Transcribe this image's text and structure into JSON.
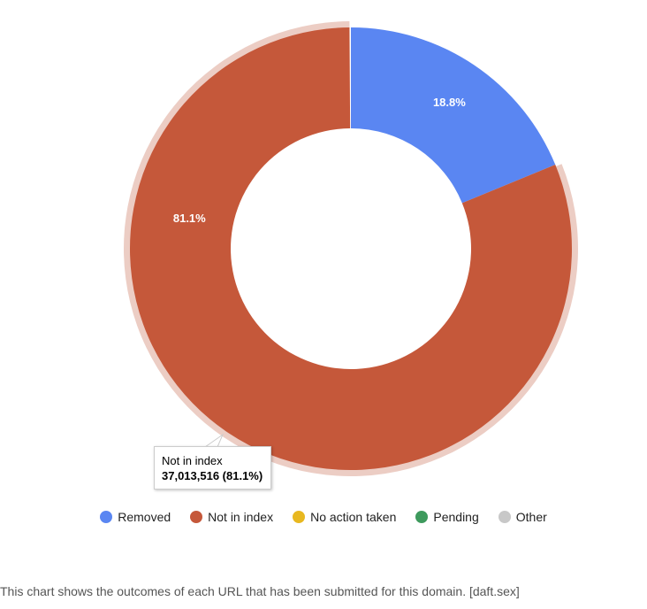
{
  "chart_data": {
    "type": "pie",
    "donut": true,
    "slices": [
      {
        "name": "Removed",
        "value": 18.8,
        "label": "18.8%",
        "color": "#5a86f2"
      },
      {
        "name": "Not in index",
        "value": 81.1,
        "label": "81.1%",
        "color": "#c5583a",
        "highlighted": true,
        "highlight_color": "#eccdc4"
      },
      {
        "name": "No action taken",
        "value": 0,
        "label": "",
        "color": "#f4b400"
      },
      {
        "name": "Pending",
        "value": 0,
        "label": "",
        "color": "#3e9a5d"
      },
      {
        "name": "Other",
        "value": 0.1,
        "label": "",
        "color": "#c8c8c8"
      }
    ],
    "legend_position": "bottom",
    "tooltip": {
      "title": "Not in index",
      "value": "37,013,516 (81.1%)"
    }
  },
  "legend": [
    {
      "label": "Removed",
      "color": "#5a86f2"
    },
    {
      "label": "Not in index",
      "color": "#c5583a"
    },
    {
      "label": "No action taken",
      "color": "#e8b820"
    },
    {
      "label": "Pending",
      "color": "#3e9a5d"
    },
    {
      "label": "Other",
      "color": "#c8c8c8"
    }
  ],
  "caption": "This chart shows the outcomes of each URL that has been submitted for this domain. [daft.sex]"
}
